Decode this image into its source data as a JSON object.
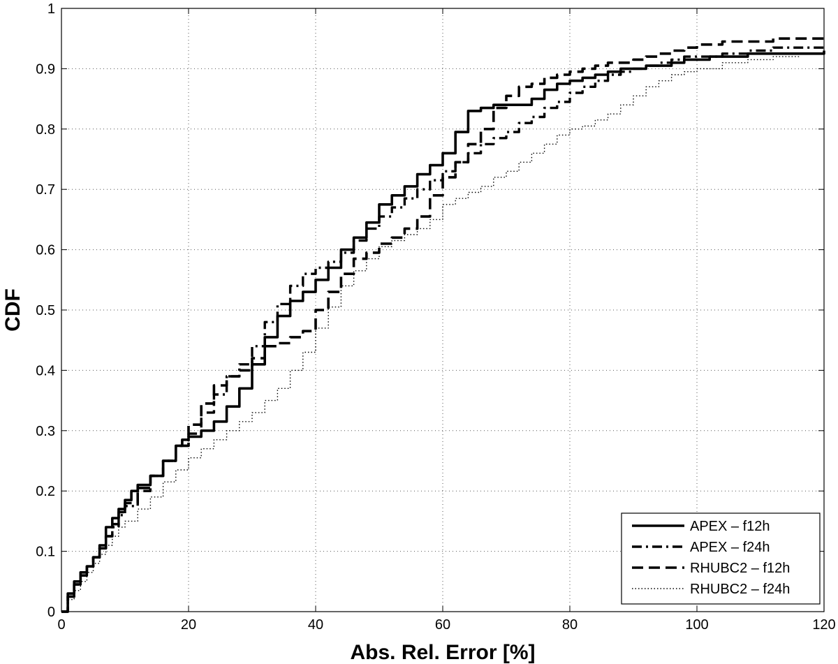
{
  "chart_data": {
    "type": "line",
    "title": "",
    "xlabel": "Abs. Rel. Error [%]",
    "ylabel": "CDF",
    "xlim": [
      0,
      120
    ],
    "ylim": [
      0,
      1
    ],
    "x_ticks": [
      "0",
      "20",
      "40",
      "60",
      "80",
      "100",
      "120"
    ],
    "y_ticks": [
      "0",
      "0.1",
      "0.2",
      "0.3",
      "0.4",
      "0.5",
      "0.6",
      "0.7",
      "0.8",
      "0.9",
      "1"
    ],
    "grid": true,
    "legend_position": "bottom-right",
    "series": [
      {
        "name": "APEX – f12h",
        "style": "solid",
        "x": [
          0,
          1,
          2,
          3,
          4,
          5,
          6,
          7,
          8,
          9,
          10,
          11,
          12,
          14,
          16,
          18,
          19,
          20,
          22,
          24,
          26,
          28,
          30,
          32,
          34,
          36,
          38,
          40,
          42,
          44,
          46,
          48,
          50,
          52,
          54,
          56,
          58,
          60,
          62,
          64,
          66,
          68,
          70,
          72,
          74,
          76,
          78,
          80,
          82,
          84,
          86,
          88,
          90,
          92,
          94,
          96,
          98,
          100,
          102,
          104,
          106,
          108,
          110,
          112,
          115,
          120
        ],
        "y": [
          0,
          0.03,
          0.05,
          0.065,
          0.075,
          0.09,
          0.11,
          0.14,
          0.155,
          0.17,
          0.185,
          0.2,
          0.21,
          0.225,
          0.25,
          0.275,
          0.285,
          0.29,
          0.3,
          0.315,
          0.34,
          0.37,
          0.41,
          0.455,
          0.49,
          0.515,
          0.53,
          0.55,
          0.57,
          0.6,
          0.62,
          0.645,
          0.675,
          0.69,
          0.705,
          0.725,
          0.74,
          0.76,
          0.795,
          0.83,
          0.835,
          0.84,
          0.84,
          0.84,
          0.85,
          0.865,
          0.875,
          0.88,
          0.885,
          0.89,
          0.895,
          0.9,
          0.9,
          0.905,
          0.905,
          0.91,
          0.915,
          0.915,
          0.92,
          0.92,
          0.92,
          0.925,
          0.925,
          0.925,
          0.925,
          0.93
        ]
      },
      {
        "name": "APEX – f24h",
        "style": "dashdot",
        "x": [
          0,
          1,
          2,
          3,
          4,
          5,
          6,
          7,
          8,
          9,
          10,
          12,
          14,
          16,
          18,
          20,
          22,
          24,
          26,
          28,
          30,
          32,
          34,
          36,
          38,
          40,
          42,
          44,
          46,
          48,
          50,
          52,
          54,
          56,
          58,
          60,
          62,
          64,
          66,
          68,
          70,
          72,
          74,
          76,
          78,
          80,
          82,
          84,
          86,
          88,
          90,
          92,
          94,
          96,
          98,
          100,
          104,
          108,
          112,
          116,
          120
        ],
        "y": [
          0,
          0.025,
          0.045,
          0.06,
          0.075,
          0.09,
          0.105,
          0.125,
          0.14,
          0.16,
          0.175,
          0.2,
          0.225,
          0.25,
          0.275,
          0.295,
          0.33,
          0.36,
          0.39,
          0.41,
          0.44,
          0.48,
          0.51,
          0.54,
          0.56,
          0.57,
          0.58,
          0.595,
          0.615,
          0.635,
          0.655,
          0.67,
          0.685,
          0.7,
          0.715,
          0.73,
          0.745,
          0.76,
          0.775,
          0.785,
          0.795,
          0.81,
          0.82,
          0.835,
          0.845,
          0.86,
          0.87,
          0.88,
          0.89,
          0.895,
          0.9,
          0.905,
          0.91,
          0.915,
          0.92,
          0.92,
          0.925,
          0.93,
          0.935,
          0.935,
          0.935
        ]
      },
      {
        "name": "RHUBC2 – f12h",
        "style": "dashed",
        "x": [
          0,
          1,
          2,
          3,
          4,
          5,
          6,
          7,
          8,
          9,
          10,
          12,
          14,
          16,
          18,
          20,
          22,
          24,
          26,
          28,
          30,
          32,
          34,
          36,
          38,
          40,
          42,
          44,
          46,
          48,
          50,
          52,
          54,
          56,
          58,
          60,
          62,
          64,
          66,
          68,
          70,
          72,
          74,
          76,
          78,
          80,
          82,
          84,
          86,
          88,
          90,
          92,
          94,
          96,
          98,
          100,
          104,
          108,
          112,
          116,
          120
        ],
        "y": [
          0,
          0.025,
          0.045,
          0.06,
          0.075,
          0.09,
          0.105,
          0.125,
          0.145,
          0.165,
          0.18,
          0.205,
          0.225,
          0.25,
          0.275,
          0.31,
          0.345,
          0.375,
          0.39,
          0.4,
          0.42,
          0.44,
          0.445,
          0.455,
          0.465,
          0.5,
          0.53,
          0.56,
          0.585,
          0.595,
          0.61,
          0.62,
          0.635,
          0.655,
          0.69,
          0.72,
          0.745,
          0.775,
          0.8,
          0.835,
          0.855,
          0.87,
          0.875,
          0.885,
          0.89,
          0.895,
          0.9,
          0.905,
          0.91,
          0.91,
          0.915,
          0.92,
          0.925,
          0.93,
          0.935,
          0.94,
          0.945,
          0.945,
          0.95,
          0.95,
          0.95
        ]
      },
      {
        "name": "RHUBC2 – f24h",
        "style": "dotted",
        "x": [
          0,
          1,
          2,
          3,
          4,
          5,
          6,
          7,
          8,
          9,
          10,
          12,
          14,
          16,
          18,
          20,
          22,
          24,
          26,
          28,
          30,
          32,
          34,
          36,
          38,
          40,
          42,
          44,
          46,
          48,
          50,
          52,
          54,
          56,
          58,
          60,
          62,
          64,
          66,
          68,
          70,
          72,
          74,
          76,
          78,
          80,
          82,
          84,
          86,
          88,
          90,
          92,
          94,
          96,
          98,
          100,
          104,
          108,
          112,
          116,
          120
        ],
        "y": [
          0,
          0.02,
          0.035,
          0.05,
          0.065,
          0.08,
          0.095,
          0.11,
          0.125,
          0.14,
          0.15,
          0.17,
          0.19,
          0.215,
          0.235,
          0.255,
          0.27,
          0.285,
          0.3,
          0.315,
          0.33,
          0.35,
          0.37,
          0.4,
          0.43,
          0.47,
          0.505,
          0.54,
          0.565,
          0.585,
          0.605,
          0.615,
          0.625,
          0.635,
          0.65,
          0.675,
          0.685,
          0.695,
          0.705,
          0.72,
          0.73,
          0.745,
          0.76,
          0.775,
          0.79,
          0.8,
          0.805,
          0.815,
          0.825,
          0.84,
          0.855,
          0.87,
          0.88,
          0.89,
          0.895,
          0.9,
          0.91,
          0.915,
          0.92,
          0.925,
          0.93
        ]
      }
    ]
  }
}
